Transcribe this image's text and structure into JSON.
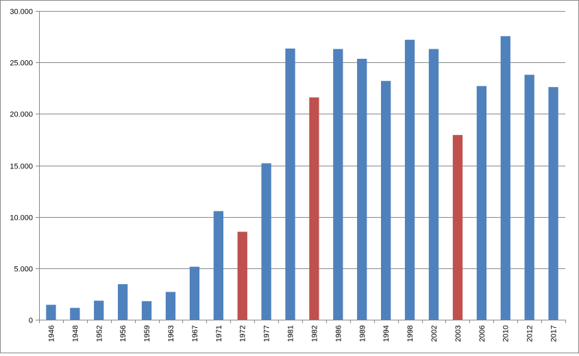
{
  "chart_data": {
    "type": "bar",
    "title": "",
    "xlabel": "",
    "ylabel": "",
    "categories": [
      "1946",
      "1948",
      "1952",
      "1956",
      "1959",
      "1963",
      "1967",
      "1971",
      "1972",
      "1977",
      "1981",
      "1982",
      "1986",
      "1989",
      "1994",
      "1998",
      "2002",
      "2003",
      "2006",
      "2010",
      "2012",
      "2017"
    ],
    "values": [
      1450,
      1150,
      1850,
      3450,
      1800,
      2700,
      5150,
      10550,
      8550,
      15200,
      26350,
      21600,
      26300,
      25350,
      23200,
      27200,
      26300,
      17950,
      22700,
      27550,
      23800,
      22600
    ],
    "highlighted_categories": [
      "1972",
      "1982",
      "2003"
    ],
    "ylim": [
      0,
      30000
    ],
    "y_ticks": [
      0,
      5000,
      10000,
      15000,
      20000,
      25000,
      30000
    ],
    "y_tick_labels": [
      "0",
      "5.000",
      "10.000",
      "15.000",
      "20.000",
      "25.000",
      "30.000"
    ],
    "grid": true,
    "legend": "none",
    "colors": {
      "bar": "#4f81bd",
      "highlight": "#c0504d",
      "grid": "#868686",
      "axis": "#868686"
    }
  }
}
